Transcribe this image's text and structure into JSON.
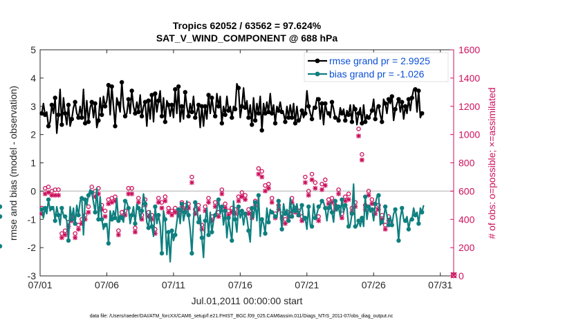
{
  "chart_data": {
    "type": "line",
    "title_line1": "Tropics 62052 / 63562 = 97.624%",
    "title_line2": "SAT_V_WIND_COMPONENT @ 688 hPa",
    "xlabel": "Jul.01,2011 00:00:00 start",
    "ylabel": "rmse and bias (model - observation)",
    "y2label": "# of obs: o=possible; ×=assimilated",
    "footer": "data file: /Users/raeder/DAI/ATM_forcXX/CAM6_setup/f.e21.FHIST_BGC.f09_025.CAM6assim.011/Diags_NTrS_2011-07/obs_diag_output.nc",
    "xlim": [
      1,
      32
    ],
    "ylim": [
      -3,
      5
    ],
    "y2lim": [
      0,
      1600
    ],
    "x_ticks": [
      1,
      6,
      11,
      16,
      21,
      26,
      31
    ],
    "x_tick_labels": [
      "07/01",
      "07/06",
      "07/11",
      "07/16",
      "07/21",
      "07/26",
      "07/31"
    ],
    "y_ticks": [
      -3,
      -2,
      -1,
      0,
      1,
      2,
      3,
      4,
      5
    ],
    "y_tick_labels": [
      "-3",
      "-2",
      "-1",
      "0",
      "1",
      "2",
      "3",
      "4",
      "5"
    ],
    "y2_ticks": [
      0,
      200,
      400,
      600,
      800,
      1000,
      1200,
      1400,
      1600
    ],
    "y2_tick_labels": [
      "0",
      "200",
      "400",
      "600",
      "800",
      "1000",
      "1200",
      "1400",
      "1600"
    ],
    "colors": {
      "rmse": "#000000",
      "bias": "#0f7f7f",
      "obs": "#cc0f5c",
      "zero": "#c8c8c8",
      "legend_text": "#0a4fd6"
    },
    "series": [
      {
        "name": "rmse grand pr = 2.9925",
        "color": "#000000",
        "values": [
          2.75,
          3.1,
          2.7,
          2.8,
          2.3,
          2.45,
          3.05,
          2.75,
          3.3,
          2.05,
          2.7,
          3.6,
          2.35,
          3.3,
          2.75,
          2.35,
          3.05,
          2.3,
          2.55,
          2.95,
          3.15,
          2.75,
          2.6,
          3.0,
          2.6,
          3.6,
          2.4,
          3.2,
          2.45,
          2.95,
          3.15,
          2.6,
          3.1,
          2.25,
          2.5,
          3.3,
          2.7,
          3.35,
          3.0,
          3.2,
          3.75,
          2.7,
          3.7,
          3.0,
          2.3,
          3.3,
          3.1,
          2.8,
          3.85,
          3.0,
          2.65,
          2.75,
          3.25,
          2.75,
          3.55,
          3.0,
          2.75,
          3.15,
          2.8,
          3.4,
          2.65,
          3.0,
          3.15,
          2.3,
          3.2,
          2.55,
          3.4,
          2.45,
          3.45,
          2.8,
          3.2,
          3.55,
          2.65,
          3.3,
          2.45,
          3.2,
          3.05,
          2.65,
          3.05,
          2.6,
          3.6,
          2.75,
          3.7,
          2.45,
          3.0,
          2.55,
          3.5,
          3.0,
          2.65,
          3.1,
          2.8,
          3.35,
          2.6,
          2.8,
          3.05,
          2.25,
          3.0,
          2.3,
          3.0,
          2.55,
          3.4,
          2.75,
          3.3,
          2.85,
          2.65,
          3.45,
          3.0,
          3.35,
          2.4,
          3.0,
          2.7,
          3.35,
          2.85,
          3.0,
          2.6,
          3.0,
          2.9,
          3.8,
          3.65,
          2.6,
          3.0,
          3.65,
          2.95,
          3.2,
          2.6,
          3.05,
          2.35,
          3.3,
          2.5,
          3.1,
          2.75,
          3.35,
          2.15,
          3.1,
          2.75,
          3.15,
          2.8,
          3.45,
          2.75,
          3.05,
          2.4,
          3.0,
          2.85,
          3.15,
          2.8,
          2.75,
          2.45,
          3.0,
          2.6,
          3.05,
          2.6,
          3.1,
          2.4,
          3.0,
          2.5,
          2.55,
          2.85,
          2.6,
          2.75,
          3.55,
          3.0,
          2.75,
          2.55,
          3.0,
          2.95,
          3.3,
          3.25,
          2.55,
          3.1,
          2.35,
          3.1,
          2.8,
          2.75,
          2.6,
          3.15,
          2.9,
          2.6,
          2.6,
          2.5,
          2.95,
          2.75,
          2.9,
          2.5,
          2.85,
          2.7,
          3.05,
          2.45,
          3.05,
          2.9,
          2.35,
          2.75,
          2.95,
          2.4,
          3.05,
          2.45,
          2.7,
          2.6,
          2.7,
          2.85,
          3.25,
          2.55,
          2.95,
          3.0,
          2.7,
          2.45,
          3.25,
          3.1,
          2.75,
          3.25,
          3.1,
          3.35,
          2.5,
          2.9,
          3.1,
          3.25,
          2.8,
          3.15,
          2.55,
          3.0,
          2.75,
          3.25,
          2.85,
          3.3,
          3.6,
          3.6,
          2.8,
          3.55,
          2.6,
          2.75,
          2.8
        ]
      },
      {
        "name": "bias grand pr = -1.026",
        "color": "#0f7f7f",
        "values": [
          -0.65,
          -0.95,
          -0.6,
          -0.8,
          -0.3,
          -0.7,
          -0.6,
          -0.55,
          -1.05,
          -0.55,
          -0.85,
          -1.2,
          -0.6,
          -0.85,
          -0.9,
          -1.05,
          -1.75,
          -0.55,
          -1.0,
          -0.6,
          -1.15,
          -0.5,
          -0.85,
          -0.35,
          -0.25,
          -1.55,
          -0.3,
          -0.5,
          -0.15,
          0.05,
          -0.05,
          -0.4,
          -0.75,
          0.1,
          -1.0,
          -0.2,
          -1.0,
          -1.35,
          -1.2,
          -1.15,
          -1.85,
          -0.7,
          -1.0,
          -0.7,
          -0.95,
          -0.25,
          -1.05,
          -0.85,
          -0.95,
          -1.1,
          -0.35,
          -0.4,
          -0.6,
          -1.15,
          -0.85,
          -0.55,
          -1.15,
          -0.45,
          -0.6,
          -1.0,
          -0.7,
          -0.1,
          -0.45,
          -1.1,
          -1.3,
          -0.7,
          -1.25,
          -1.6,
          -0.55,
          -1.15,
          -0.85,
          -1.2,
          -2.2,
          -0.7,
          -1.0,
          -2.25,
          -1.45,
          -2.5,
          -1.4,
          -1.75,
          -1.55,
          -1.1,
          -0.65,
          -1.15,
          -0.45,
          -1.05,
          -0.75,
          -0.35,
          -0.85,
          -1.35,
          -2.2,
          -1.0,
          -0.4,
          -0.6,
          -1.1,
          -0.85,
          -1.65,
          -2.35,
          -1.05,
          -0.6,
          -1.55,
          -0.75,
          -1.45,
          -1.05,
          -0.85,
          -0.65,
          -0.3,
          -0.8,
          -0.55,
          -1.2,
          -0.7,
          -1.65,
          -0.95,
          -1.4,
          -1.75,
          -0.35,
          -1.0,
          -1.45,
          -0.55,
          -0.95,
          -0.7,
          -1.2,
          -0.8,
          -0.95,
          -1.4,
          -1.8,
          -0.6,
          -0.95,
          -0.4,
          -1.05,
          -0.15,
          -1.6,
          -1.0,
          -1.15,
          -1.5,
          -0.6,
          -1.1,
          -0.65,
          -0.75,
          -0.8,
          -0.9,
          -0.95,
          -0.35,
          -0.65,
          -1.35,
          -0.45,
          -0.8,
          -0.65,
          -1.05,
          -0.25,
          -0.9,
          -0.45,
          -0.7,
          -0.45,
          -0.85,
          -0.65,
          -0.5,
          -1.05,
          -0.95,
          -1.35,
          -0.55,
          -1.2,
          -1.25,
          -0.45,
          -0.95,
          -0.8,
          -0.55,
          -0.5,
          -0.35,
          -0.4,
          -0.6,
          -1.05,
          -0.6,
          -0.4,
          -0.75,
          -1.1,
          -0.35,
          -0.7,
          -0.55,
          -0.9,
          -0.3,
          -0.75,
          -0.5,
          -0.6,
          -1.25,
          -1.2,
          -0.8,
          0.25,
          -1.25,
          -1.25,
          -1.05,
          -1.25,
          -0.95,
          -1.25,
          -0.2,
          -1.0,
          -0.55,
          -0.75,
          -0.65,
          -1.05,
          -0.45,
          -0.2,
          -0.15,
          -1.2,
          -1.1,
          -1.0,
          -0.55,
          -0.85,
          -1.2,
          -0.9,
          -1.2,
          -0.8,
          -0.65,
          -1.0,
          -1.75,
          -0.95,
          -0.6,
          -1.0,
          -1.05,
          -0.9,
          -1.35,
          -1.0,
          -1.0,
          -0.6,
          -0.85,
          -0.75,
          -1.15,
          -0.6,
          -0.75,
          -0.5,
          -0.55,
          -0.8,
          -1.95,
          -0.4,
          -0.9,
          -1.0,
          -0.9
        ]
      }
    ],
    "obs_possible": [
      480,
      500,
      620,
      480,
      630,
      640,
      600,
      590,
      610,
      570,
      610,
      320,
      300,
      540,
      320,
      400,
      380,
      500,
      420,
      450,
      300,
      420,
      360,
      570,
      400,
      300,
      430,
      290,
      490,
      440,
      630,
      580,
      600,
      560,
      620,
      490,
      500,
      600,
      460,
      500,
      540,
      450,
      550,
      520,
      560,
      200,
      320,
      590,
      450,
      490,
      460,
      360,
      620,
      420,
      620,
      650,
      340,
      400,
      550,
      400,
      430,
      300,
      540,
      480,
      450,
      490,
      430,
      400,
      330,
      570,
      550,
      600,
      520,
      440,
      560,
      600,
      480,
      640,
      460,
      390,
      480,
      400,
      460,
      370,
      520,
      490,
      500,
      400,
      510,
      780,
      700,
      540,
      470,
      560,
      500,
      450,
      360,
      450,
      490,
      420,
      550,
      600,
      420,
      600,
      520,
      440,
      450,
      570,
      610,
      400,
      510,
      420,
      460,
      370,
      480,
      370,
      470,
      450,
      560,
      400,
      590,
      500,
      570,
      470,
      470,
      600,
      440,
      330,
      530,
      420,
      760,
      700,
      740,
      660,
      640,
      680,
      650,
      620,
      550,
      570,
      440,
      520,
      500,
      450,
      440,
      320,
      400,
      560,
      450,
      490,
      550,
      520,
      480,
      440,
      460,
      410,
      420,
      450,
      700,
      700,
      600,
      700,
      720,
      740,
      660,
      610,
      420,
      260,
      650,
      580,
      680,
      600,
      540,
      880,
      550,
      580,
      500,
      480,
      610,
      320,
      440,
      390,
      560,
      500,
      580,
      500,
      480,
      280,
      520,
      560,
      1040,
      620,
      860,
      370,
      500,
      480,
      600,
      530,
      540,
      460,
      470,
      530,
      500,
      480,
      430,
      410,
      360,
      330,
      420
    ],
    "obs_assimilated": [
      460,
      480,
      600,
      460,
      610,
      620,
      590,
      580,
      590,
      550,
      590,
      310,
      290,
      520,
      310,
      390,
      370,
      480,
      410,
      440,
      290,
      400,
      350,
      550,
      390,
      290,
      420,
      280,
      470,
      430,
      610,
      560,
      580,
      540,
      600,
      470,
      490,
      580,
      440,
      490,
      530,
      440,
      540,
      500,
      550,
      190,
      310,
      570,
      440,
      470,
      450,
      350,
      600,
      410,
      600,
      630,
      330,
      390,
      540,
      390,
      420,
      290,
      520,
      470,
      440,
      470,
      420,
      390,
      320,
      560,
      540,
      590,
      500,
      430,
      550,
      580,
      470,
      620,
      450,
      380,
      470,
      390,
      450,
      360,
      510,
      480,
      490,
      390,
      500,
      760,
      680,
      530,
      460,
      550,
      490,
      440,
      350,
      440,
      480,
      410,
      540,
      590,
      410,
      590,
      510,
      430,
      440,
      560,
      600,
      390,
      500,
      410,
      450,
      360,
      470,
      360,
      460,
      440,
      550,
      390,
      580,
      490,
      560,
      460,
      460,
      590,
      430,
      320,
      520,
      410,
      740,
      680,
      720,
      640,
      620,
      660,
      640,
      600,
      540,
      560,
      430,
      510,
      490,
      440,
      430,
      310,
      390,
      550,
      440,
      480,
      540,
      510,
      470,
      430,
      450,
      400,
      410,
      440,
      680,
      690,
      590,
      690,
      700,
      720,
      640,
      600,
      410,
      250,
      630,
      560,
      660,
      590,
      530,
      860,
      540,
      570,
      490,
      470,
      600,
      310,
      430,
      380,
      550,
      490,
      560,
      490,
      470,
      270,
      510,
      550,
      1010,
      600,
      840,
      360,
      490,
      470,
      590,
      520,
      530,
      450,
      460,
      520,
      490,
      470,
      420,
      400,
      350,
      320,
      410
    ]
  }
}
